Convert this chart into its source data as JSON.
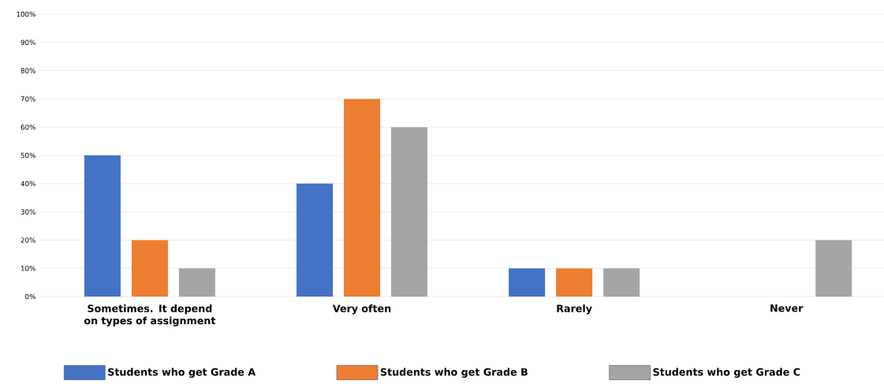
{
  "chart_data": {
    "type": "bar",
    "categories": [
      "Sometimes. It depend on types of assignment",
      "Very often",
      "Rarely",
      "Never"
    ],
    "series": [
      {
        "name": "Students who get Grade A",
        "color": "#4472c4",
        "values": [
          50,
          40,
          10,
          0
        ]
      },
      {
        "name": "Students who get Grade B",
        "color": "#ed7d31",
        "values": [
          20,
          70,
          10,
          0
        ]
      },
      {
        "name": "Students who get Grade C",
        "color": "#a5a5a5",
        "values": [
          10,
          60,
          10,
          20
        ]
      }
    ],
    "ylim": [
      0,
      100
    ],
    "yticks": [
      {
        "value": 0,
        "label": "0%"
      },
      {
        "value": 10,
        "label": "10%"
      },
      {
        "value": 20,
        "label": "20%"
      },
      {
        "value": 30,
        "label": "30%"
      },
      {
        "value": 40,
        "label": "40%"
      },
      {
        "value": 50,
        "label": "50%"
      },
      {
        "value": 60,
        "label": "60%"
      },
      {
        "value": 70,
        "label": "70%"
      },
      {
        "value": 80,
        "label": "80%"
      },
      {
        "value": 90,
        "label": "90%"
      },
      {
        "value": 100,
        "label": "100%"
      }
    ],
    "grid": "y",
    "legend": "bottom"
  }
}
